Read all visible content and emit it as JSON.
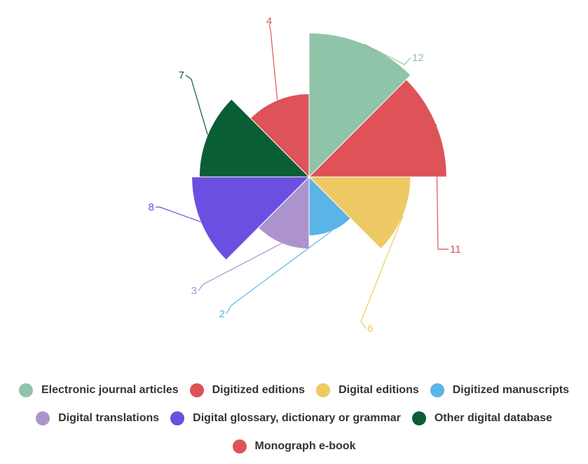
{
  "chart_data": {
    "type": "polar-area",
    "title": "",
    "series": [
      {
        "name": "Electronic journal articles",
        "value": 12,
        "color": "#8fc4a8"
      },
      {
        "name": "Digitized editions",
        "value": 11,
        "color": "#dd5357"
      },
      {
        "name": "Digital editions",
        "value": 6,
        "color": "#edca63"
      },
      {
        "name": "Digitized manuscripts",
        "value": 2,
        "color": "#5ab4e5"
      },
      {
        "name": "Digital translations",
        "value": 3,
        "color": "#ad93cc"
      },
      {
        "name": "Digital glossary, dictionary or grammar",
        "value": 8,
        "color": "#6b4fe0"
      },
      {
        "name": "Other digital database",
        "value": 7,
        "color": "#0a5e35"
      },
      {
        "name": "Monograph e-book",
        "value": 4,
        "color": "#dd5357"
      }
    ],
    "legend_position": "bottom"
  }
}
